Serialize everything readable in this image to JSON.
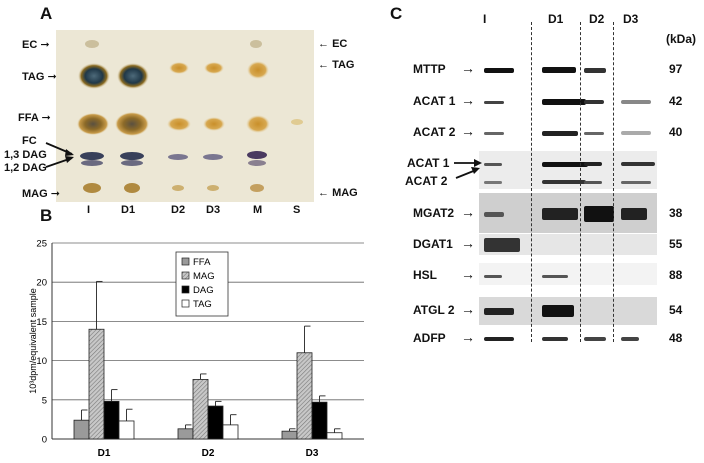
{
  "panels": {
    "a": "A",
    "b": "B",
    "c": "C"
  },
  "tlc": {
    "left_labels": [
      "EC",
      "TAG",
      "FFA",
      "FC",
      "1,3 DAG",
      "1,2 DAG",
      "MAG"
    ],
    "right_labels": [
      "EC",
      "TAG",
      "MAG"
    ],
    "lanes": [
      "I",
      "D1",
      "D2",
      "D3",
      "M",
      "S"
    ]
  },
  "chart_data": {
    "type": "bar",
    "categories": [
      "D1",
      "D2",
      "D3"
    ],
    "series": [
      {
        "name": "FFA",
        "values": [
          2.4,
          1.3,
          1.0
        ],
        "errors": [
          1.3,
          0.5,
          0.3
        ],
        "color": "#9a9a9a"
      },
      {
        "name": "MAG",
        "values": [
          14.0,
          7.6,
          11.0
        ],
        "errors": [
          6.1,
          0.7,
          3.4
        ],
        "color": "#bdbdbd"
      },
      {
        "name": "DAG",
        "values": [
          4.8,
          4.2,
          4.7
        ],
        "errors": [
          1.5,
          0.6,
          0.8
        ],
        "color": "#000000"
      },
      {
        "name": "TAG",
        "values": [
          2.3,
          1.8,
          0.8
        ],
        "errors": [
          1.5,
          1.3,
          0.5
        ],
        "color": "#ffffff"
      }
    ],
    "ylabel": "10³dpm/equivalent sample",
    "ylim": [
      0,
      25
    ],
    "yticks": [
      0,
      5,
      10,
      15,
      20,
      25
    ],
    "grid": true,
    "legend": "top-center"
  },
  "blot": {
    "columns": [
      "I",
      "D1",
      "D2",
      "D3"
    ],
    "unit": "(kDa)",
    "rows": [
      {
        "label": "MTTP",
        "kda": "97"
      },
      {
        "label": "ACAT 1",
        "kda": "42"
      },
      {
        "label": "ACAT 2",
        "kda": "40"
      },
      {
        "label": "ACAT 1",
        "kda": ""
      },
      {
        "label": "ACAT 2",
        "kda": ""
      },
      {
        "label": "MGAT2",
        "kda": "38"
      },
      {
        "label": "DGAT1",
        "kda": "55"
      },
      {
        "label": "HSL",
        "kda": "88"
      },
      {
        "label": "ATGL 2",
        "kda": "54"
      },
      {
        "label": "ADFP",
        "kda": "48"
      }
    ]
  }
}
